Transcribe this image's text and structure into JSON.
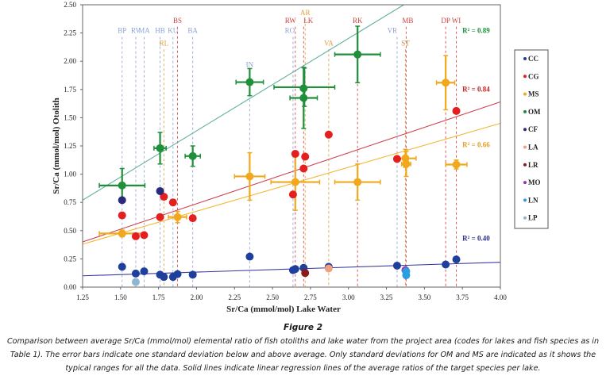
{
  "chart_data": {
    "type": "scatter",
    "title": "",
    "xlabel": "Sr/Ca (mmol/mol) Lake Water",
    "ylabel": "Sr/Ca (mmol/mol) Otolith",
    "xlim": [
      1.25,
      4.0
    ],
    "ylim": [
      0.0,
      2.5
    ],
    "xticks": [
      "1.25",
      "1.50",
      "1.75",
      "2.00",
      "2.25",
      "2.50",
      "2.75",
      "3.00",
      "3.25",
      "3.50",
      "3.75",
      "4.00"
    ],
    "yticks": [
      "0.00",
      "0.25",
      "0.50",
      "0.75",
      "1.00",
      "1.25",
      "1.50",
      "1.75",
      "2.00",
      "2.25",
      "2.50"
    ],
    "grid": false,
    "legend_position": "right",
    "colors": {
      "CC": "#1f3f9c",
      "CG": "#e41f1f",
      "MS": "#f2a81d",
      "OM": "#1f8f3a",
      "CF": "#2a2a7a",
      "LA": "#f0a080",
      "LR": "#8b1a1a",
      "MO": "#9a30b0",
      "LN": "#2a9ee0",
      "LP": "#8fb8d0"
    },
    "legend": [
      "CC",
      "CG",
      "MS",
      "OM",
      "CF",
      "LA",
      "LR",
      "MO",
      "LN",
      "LP"
    ],
    "lakes": [
      {
        "code": "BP",
        "x": 1.51,
        "color": "#8ea2d8",
        "label_y": 2.25
      },
      {
        "code": "RV",
        "x": 1.6,
        "color": "#8ea2d8",
        "label_y": 2.25
      },
      {
        "code": "MA",
        "x": 1.655,
        "color": "#8ea2d8",
        "label_y": 2.25
      },
      {
        "code": "HB",
        "x": 1.76,
        "color": "#8ea2d8",
        "label_y": 2.25
      },
      {
        "code": "RL",
        "x": 1.785,
        "color": "#e0a040",
        "label_y": 2.14
      },
      {
        "code": "KU",
        "x": 1.845,
        "color": "#8ea2d8",
        "label_y": 2.25
      },
      {
        "code": "BS",
        "x": 1.875,
        "color": "#d04040",
        "label_y": 2.34
      },
      {
        "code": "BA",
        "x": 1.975,
        "color": "#8ea2d8",
        "label_y": 2.25
      },
      {
        "code": "IN",
        "x": 2.35,
        "color": "#8ea2d8",
        "label_y": 1.95
      },
      {
        "code": "RO",
        "x": 2.635,
        "color": "#8ea2d8",
        "label_y": 2.25
      },
      {
        "code": "RW",
        "x": 2.65,
        "color": "#d04040",
        "label_y": 2.34
      },
      {
        "code": "LK",
        "x": 2.705,
        "color": "#d04040",
        "label_y": 2.34
      },
      {
        "code": "AR",
        "x": 2.715,
        "color": "#e0a040",
        "label_y": 2.41
      },
      {
        "code": "VA",
        "x": 2.87,
        "color": "#e0a040",
        "label_y": 2.14
      },
      {
        "code": "RK",
        "x": 3.06,
        "color": "#d04040",
        "label_y": 2.34
      },
      {
        "code": "VR",
        "x": 3.32,
        "color": "#8ea2d8",
        "label_y": 2.25
      },
      {
        "code": "ST",
        "x": 3.375,
        "color": "#c08a40",
        "label_y": 2.14
      },
      {
        "code": "MB",
        "x": 3.38,
        "color": "#d04040",
        "label_y": 2.34
      },
      {
        "code": "DP",
        "x": 3.64,
        "color": "#d04040",
        "label_y": 2.34
      },
      {
        "code": "WI",
        "x": 3.71,
        "color": "#d04040",
        "label_y": 2.34
      }
    ],
    "series": [
      {
        "name": "CC",
        "points": [
          [
            1.51,
            0.18
          ],
          [
            1.6,
            0.12
          ],
          [
            1.655,
            0.14
          ],
          [
            1.76,
            0.11
          ],
          [
            1.785,
            0.09
          ],
          [
            1.845,
            0.09
          ],
          [
            1.875,
            0.115
          ],
          [
            1.975,
            0.11
          ],
          [
            2.35,
            0.27
          ],
          [
            2.635,
            0.15
          ],
          [
            2.65,
            0.16
          ],
          [
            2.705,
            0.17
          ],
          [
            2.87,
            0.18
          ],
          [
            3.32,
            0.19
          ],
          [
            3.64,
            0.2
          ],
          [
            3.71,
            0.245
          ]
        ]
      },
      {
        "name": "CG",
        "points": [
          [
            1.51,
            0.635
          ],
          [
            1.6,
            0.45
          ],
          [
            1.655,
            0.46
          ],
          [
            1.76,
            0.62
          ],
          [
            1.785,
            0.8
          ],
          [
            1.845,
            0.75
          ],
          [
            1.975,
            0.61
          ],
          [
            2.635,
            0.82
          ],
          [
            2.65,
            1.18
          ],
          [
            2.705,
            1.05
          ],
          [
            2.715,
            1.155
          ],
          [
            2.87,
            1.35
          ],
          [
            3.32,
            1.135
          ],
          [
            3.71,
            1.56
          ]
        ]
      },
      {
        "name": "MS",
        "points": [
          [
            1.51,
            0.475
          ],
          [
            1.875,
            0.62
          ],
          [
            2.35,
            0.98
          ],
          [
            2.65,
            0.93
          ],
          [
            3.06,
            0.93
          ],
          [
            3.375,
            1.14
          ],
          [
            3.38,
            1.09
          ],
          [
            3.64,
            1.81
          ],
          [
            3.71,
            1.085
          ]
        ],
        "errors": [
          {
            "x": 1.51,
            "y": 0.475,
            "xerr": 0.15,
            "yerr": 0.03
          },
          {
            "x": 1.875,
            "y": 0.62,
            "xerr": 0.06,
            "yerr": 0.05
          },
          {
            "x": 2.35,
            "y": 0.98,
            "xerr": 0.1,
            "yerr": 0.21
          },
          {
            "x": 2.65,
            "y": 0.93,
            "xerr": 0.16,
            "yerr": 0.25
          },
          {
            "x": 3.06,
            "y": 0.93,
            "xerr": 0.15,
            "yerr": 0.16
          },
          {
            "x": 3.375,
            "y": 1.14,
            "xerr": 0.07,
            "yerr": 0.08
          },
          {
            "x": 3.38,
            "y": 1.09,
            "xerr": 0.03,
            "yerr": 0.11
          },
          {
            "x": 3.64,
            "y": 1.81,
            "xerr": 0.06,
            "yerr": 0.24
          },
          {
            "x": 3.71,
            "y": 1.085,
            "xerr": 0.07,
            "yerr": 0.04
          }
        ]
      },
      {
        "name": "OM",
        "points": [
          [
            1.51,
            0.9
          ],
          [
            1.76,
            1.23
          ],
          [
            1.975,
            1.16
          ],
          [
            2.35,
            1.815
          ],
          [
            2.705,
            1.76
          ],
          [
            2.705,
            1.675
          ],
          [
            3.06,
            2.06
          ]
        ],
        "errors": [
          {
            "x": 1.51,
            "y": 0.9,
            "xerr": 0.15,
            "yerr": 0.15
          },
          {
            "x": 1.76,
            "y": 1.23,
            "xerr": 0.04,
            "yerr": 0.14
          },
          {
            "x": 1.975,
            "y": 1.16,
            "xerr": 0.05,
            "yerr": 0.09
          },
          {
            "x": 2.35,
            "y": 1.815,
            "xerr": 0.09,
            "yerr": 0.12
          },
          {
            "x": 2.71,
            "y": 1.77,
            "xerr": 0.2,
            "yerr": 0.17
          },
          {
            "x": 2.705,
            "y": 1.675,
            "xerr": 0.09,
            "yerr": 0.27
          },
          {
            "x": 3.06,
            "y": 2.06,
            "xerr": 0.15,
            "yerr": 0.25
          }
        ]
      },
      {
        "name": "CF",
        "points": [
          [
            1.51,
            0.77
          ],
          [
            1.76,
            0.85
          ]
        ]
      },
      {
        "name": "LA",
        "points": [
          [
            2.87,
            0.165
          ]
        ]
      },
      {
        "name": "LR",
        "points": [
          [
            2.715,
            0.125
          ]
        ]
      },
      {
        "name": "MO",
        "points": [
          [
            3.375,
            0.15
          ]
        ]
      },
      {
        "name": "LN",
        "points": [
          [
            3.38,
            0.14
          ],
          [
            3.38,
            0.105
          ]
        ]
      },
      {
        "name": "LP",
        "points": [
          [
            1.6,
            0.045
          ]
        ]
      }
    ],
    "regressions": [
      {
        "name": "OM",
        "color": "#5fb0a0",
        "x1": 1.25,
        "y1": 0.77,
        "x2": 4.0,
        "y2": 3.02,
        "r2_label": "R² = 0.89",
        "label_color": "#1f8f3a",
        "label_x": 3.75,
        "label_y": 2.25
      },
      {
        "name": "CG",
        "color": "#d04050",
        "x1": 1.25,
        "y1": 0.4,
        "x2": 4.0,
        "y2": 1.64,
        "r2_label": "R² = 0.84",
        "label_color": "#c02020",
        "label_x": 3.75,
        "label_y": 1.73
      },
      {
        "name": "MS",
        "color": "#f0b830",
        "x1": 1.25,
        "y1": 0.38,
        "x2": 4.0,
        "y2": 1.45,
        "r2_label": "R² = 0.66",
        "label_color": "#e0a020",
        "label_x": 3.75,
        "label_y": 1.24
      },
      {
        "name": "CC",
        "color": "#3a3aa0",
        "x1": 1.25,
        "y1": 0.1,
        "x2": 4.0,
        "y2": 0.22,
        "r2_label": "R² = 0.40",
        "label_color": "#2a2a8a",
        "label_x": 3.75,
        "label_y": 0.41
      }
    ]
  },
  "caption": {
    "figure_label": "Figure 2",
    "text": "Comparison between average Sr/Ca (mmol/mol) elemental ratio of fish otoliths and lake water from the project area (codes for lakes and fish species as in Table 1). The error bars indicate one standard deviation below and above average. Only standard deviations for OM and MS are indicated as it shows the typical ranges for all the data. Solid lines indicate linear regression lines of the average ratios of the target species per lake."
  }
}
